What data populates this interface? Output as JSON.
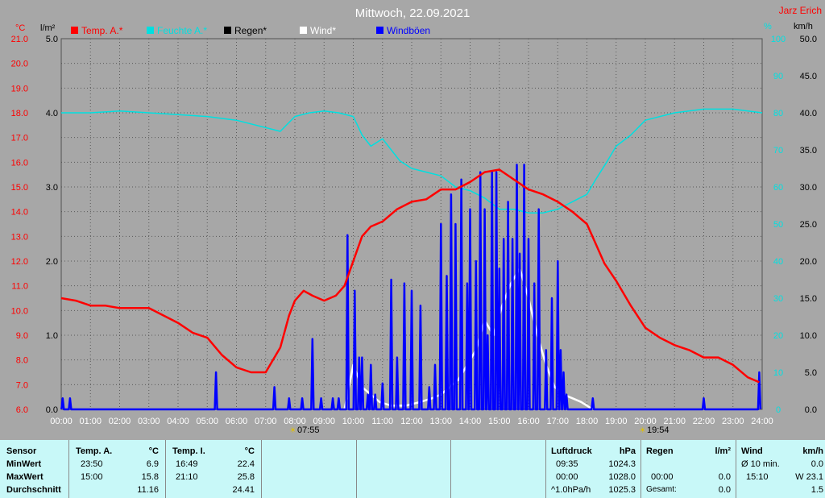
{
  "header": {
    "title": "Mittwoch, 22.09.2021",
    "author": "Jarz Erich",
    "unit_temp": "°C",
    "unit_rain": "l/m²",
    "unit_hum": "%",
    "unit_wind": "km/h"
  },
  "legend": [
    {
      "label": "Temp. A.*",
      "color": "#ff0000"
    },
    {
      "label": "Feuchte A.*",
      "color": "#00e0e0"
    },
    {
      "label": "Regen*",
      "color": "#000000"
    },
    {
      "label": "Wind*",
      "color": "#ffffff"
    },
    {
      "label": "Windböen",
      "color": "#0000ff"
    }
  ],
  "sun": {
    "sunrise": "07:55",
    "sunset": "19:54"
  },
  "chart_data": {
    "type": "line",
    "title": "Mittwoch, 22.09.2021",
    "x_ticks": [
      "00:00",
      "01:00",
      "02:00",
      "03:00",
      "04:00",
      "05:00",
      "06:00",
      "07:00",
      "08:00",
      "09:00",
      "10:00",
      "11:00",
      "12:00",
      "13:00",
      "14:00",
      "15:00",
      "16:00",
      "17:00",
      "18:00",
      "19:00",
      "20:00",
      "21:00",
      "22:00",
      "23:00",
      "24:00"
    ],
    "axes": {
      "temp": {
        "label": "°C",
        "range": [
          6.0,
          21.0
        ],
        "ticks": [
          "6.0",
          "7.0",
          "8.0",
          "9.0",
          "10.0",
          "11.0",
          "12.0",
          "13.0",
          "14.0",
          "15.0",
          "16.0",
          "17.0",
          "18.0",
          "19.0",
          "20.0",
          "21.0"
        ],
        "color": "#ff0000"
      },
      "rain": {
        "label": "l/m²",
        "range": [
          0.0,
          5.0
        ],
        "ticks": [
          "0.0",
          "1.0",
          "2.0",
          "3.0",
          "4.0",
          "5.0"
        ]
      },
      "humidity": {
        "label": "%",
        "range": [
          0,
          100
        ],
        "ticks": [
          "0",
          "10",
          "20",
          "30",
          "40",
          "50",
          "60",
          "70",
          "80",
          "90",
          "100"
        ],
        "color": "#00e0e0"
      },
      "wind": {
        "label": "km/h",
        "range": [
          0.0,
          50.0
        ],
        "ticks": [
          "0.0",
          "5.0",
          "10.0",
          "15.0",
          "20.0",
          "25.0",
          "30.0",
          "35.0",
          "40.0",
          "45.0",
          "50.0"
        ]
      }
    },
    "grid": true,
    "series": [
      {
        "name": "Temp. A.*",
        "axis": "temp",
        "color": "#ff0000",
        "x": [
          0,
          0.5,
          1,
          1.5,
          2,
          2.5,
          3,
          3.5,
          4,
          4.5,
          5,
          5.5,
          6,
          6.5,
          7,
          7.5,
          7.8,
          8,
          8.3,
          8.6,
          9,
          9.4,
          9.7,
          10,
          10.3,
          10.6,
          11,
          11.5,
          12,
          12.5,
          13,
          13.5,
          14,
          14.5,
          15,
          15.5,
          16,
          16.5,
          17,
          17.5,
          18,
          18.3,
          18.6,
          19,
          19.5,
          20,
          20.5,
          21,
          21.5,
          22,
          22.5,
          23,
          23.5,
          23.9
        ],
        "y": [
          10.5,
          10.4,
          10.2,
          10.2,
          10.1,
          10.1,
          10.1,
          9.8,
          9.5,
          9.1,
          8.9,
          8.2,
          7.7,
          7.5,
          7.5,
          8.5,
          9.8,
          10.4,
          10.8,
          10.6,
          10.4,
          10.6,
          11.0,
          12.0,
          13.0,
          13.4,
          13.6,
          14.1,
          14.4,
          14.5,
          14.9,
          14.9,
          15.2,
          15.6,
          15.7,
          15.3,
          14.9,
          14.7,
          14.4,
          14.0,
          13.5,
          12.7,
          11.9,
          11.2,
          10.2,
          9.3,
          8.9,
          8.6,
          8.4,
          8.1,
          8.1,
          7.8,
          7.3,
          7.1
        ]
      },
      {
        "name": "Feuchte A.*",
        "axis": "humidity",
        "color": "#00e0e0",
        "x": [
          0,
          1,
          2,
          3,
          4,
          5,
          6,
          6.5,
          7,
          7.5,
          8,
          8.5,
          9,
          9.5,
          10,
          10.3,
          10.6,
          11,
          11.3,
          11.6,
          12,
          12.5,
          13,
          13.5,
          14,
          14.5,
          15,
          15.5,
          16,
          16.5,
          17,
          17.5,
          18,
          18.3,
          18.7,
          19,
          19.5,
          20,
          21,
          22,
          23,
          24
        ],
        "y": [
          80,
          80,
          80.5,
          80,
          79.5,
          79,
          78,
          77,
          76,
          75,
          79,
          80,
          80.5,
          80,
          79,
          74,
          71,
          73,
          70,
          67,
          65,
          64,
          63,
          60,
          59,
          57,
          54,
          54,
          53,
          53,
          54,
          56,
          58,
          62,
          67,
          71,
          74,
          78,
          80,
          81,
          81,
          80
        ]
      },
      {
        "name": "Wind*",
        "axis": "wind",
        "color": "#ffffff",
        "x": [
          9.7,
          10,
          10.3,
          10.6,
          10.9,
          11.3,
          11.8,
          12.3,
          12.7,
          13,
          13.3,
          13.6,
          13.9,
          14.2,
          14.5,
          14.8,
          15.1,
          15.4,
          15.7,
          16,
          16.3,
          16.6,
          16.9,
          17.2,
          17.5,
          17.8,
          18,
          18.2
        ],
        "y": [
          0,
          6,
          3,
          2,
          1,
          0.5,
          0.5,
          1,
          1.5,
          2,
          3,
          4,
          6,
          8,
          12,
          10,
          14,
          17,
          19,
          15,
          10,
          6,
          3,
          2,
          1.5,
          1,
          0.5,
          0
        ]
      },
      {
        "name": "Windböen",
        "axis": "wind",
        "color": "#0000ff",
        "kind": "gusts",
        "x": [
          0.05,
          0.3,
          5.3,
          7.3,
          7.8,
          8.25,
          8.6,
          8.9,
          9.3,
          9.5,
          9.8,
          10.05,
          10.2,
          10.3,
          10.5,
          10.6,
          10.75,
          11.0,
          11.3,
          11.5,
          11.75,
          12.0,
          12.3,
          12.6,
          12.8,
          13.0,
          13.2,
          13.35,
          13.5,
          13.7,
          13.9,
          14.0,
          14.2,
          14.35,
          14.5,
          14.6,
          14.75,
          14.9,
          15.0,
          15.15,
          15.3,
          15.45,
          15.6,
          15.7,
          15.85,
          16.0,
          16.2,
          16.35,
          16.6,
          16.8,
          17.0,
          17.1,
          17.2,
          17.3,
          18.2,
          22.0,
          23.9
        ],
        "y": [
          1.5,
          1.5,
          5,
          3,
          1.5,
          1.5,
          9.5,
          1.5,
          1.5,
          1.5,
          23.5,
          16,
          7,
          7,
          2,
          6,
          2,
          3.5,
          17.5,
          7,
          17,
          16,
          14,
          3,
          6,
          25,
          18,
          29,
          25,
          31,
          17,
          27,
          20,
          32,
          27,
          10,
          32,
          32,
          19,
          23,
          28,
          23,
          33,
          21,
          33,
          23,
          17,
          27,
          8,
          15,
          20,
          8,
          5,
          2,
          1.5,
          1.5,
          5
        ]
      }
    ]
  },
  "table": {
    "sensor": {
      "header": "Sensor",
      "rows": [
        "MinWert",
        "MaxWert",
        "Durchschnitt"
      ]
    },
    "temp_a": {
      "header": "Temp. A.",
      "unit": "°C",
      "rows": [
        {
          "time": "23:50",
          "value": "6.9"
        },
        {
          "time": "15:00",
          "value": "15.8"
        },
        {
          "time": "",
          "value": "11.16"
        }
      ]
    },
    "temp_i": {
      "header": "Temp. I.",
      "unit": "°C",
      "rows": [
        {
          "time": "16:49",
          "value": "22.4"
        },
        {
          "time": "21:10",
          "value": "25.8"
        },
        {
          "time": "",
          "value": "24.41"
        }
      ]
    },
    "pressure": {
      "header": "Luftdruck",
      "unit": "hPa",
      "rows": [
        {
          "time": "09:35",
          "value": "1024.3"
        },
        {
          "time": "00:00",
          "value": "1028.0"
        },
        {
          "time": "^1.0hPa/h",
          "value": "1025.3"
        }
      ]
    },
    "rain": {
      "header": "Regen",
      "unit": "l/m²",
      "rows": [
        {
          "time": "",
          "value": ""
        },
        {
          "time": "00:00",
          "value": "0.0"
        },
        {
          "time": "Gesamt:",
          "value": "0.0"
        }
      ]
    },
    "wind": {
      "header": "Wind",
      "unit": "km/h",
      "rows": [
        {
          "time": "Ø 10 min.",
          "value": "0.0"
        },
        {
          "time": "15:10",
          "value": "W 23.1"
        },
        {
          "time": "",
          "value": "1.5"
        }
      ]
    }
  }
}
